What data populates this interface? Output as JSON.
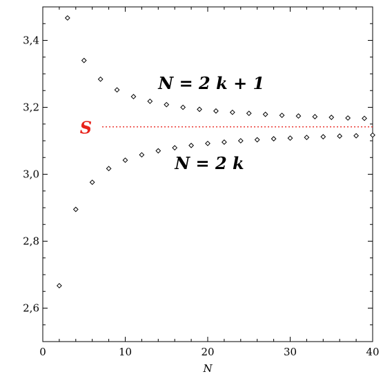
{
  "chart_data": {
    "type": "scatter",
    "title": "",
    "xlabel": "N",
    "ylabel": "",
    "xlim": [
      0,
      40
    ],
    "ylim": [
      2.5,
      3.5
    ],
    "x_ticks": [
      0,
      10,
      20,
      30,
      40
    ],
    "x_tick_labels": [
      "0",
      "10",
      "20",
      "30",
      "40"
    ],
    "y_ticks": [
      2.6,
      2.8,
      3.0,
      3.2,
      3.4
    ],
    "y_tick_labels": [
      "2,6",
      "2,8",
      "3,0",
      "3,2",
      "3,4"
    ],
    "x_minor_step": 2,
    "y_minor_step": 0.05,
    "grid": false,
    "marker": "diamond-open",
    "marker_color": "#000000",
    "series": [
      {
        "x": [
          2,
          4,
          6,
          8,
          10,
          12,
          14,
          16,
          18,
          20,
          22,
          24,
          26,
          28,
          30,
          32,
          34,
          36,
          38,
          40
        ],
        "y": [
          2.667,
          2.895,
          2.976,
          3.017,
          3.042,
          3.058,
          3.07,
          3.079,
          3.086,
          3.092,
          3.096,
          3.1,
          3.103,
          3.106,
          3.108,
          3.11,
          3.112,
          3.114,
          3.115,
          3.117
        ]
      },
      {
        "x": [
          3,
          5,
          7,
          9,
          11,
          13,
          15,
          17,
          19,
          21,
          23,
          25,
          27,
          29,
          31,
          33,
          35,
          37,
          39
        ],
        "y": [
          3.467,
          3.34,
          3.284,
          3.252,
          3.232,
          3.218,
          3.208,
          3.2,
          3.194,
          3.189,
          3.185,
          3.182,
          3.179,
          3.176,
          3.174,
          3.172,
          3.17,
          3.168,
          3.167
        ]
      }
    ],
    "reference_line": {
      "y": 3.1416,
      "x_range": [
        7.2,
        40
      ],
      "color": "#e8221b",
      "style": "dotted",
      "label": "S"
    },
    "annotations": [
      {
        "text": "N = 2 k + 1",
        "x": 14,
        "y": 3.255,
        "color": "#000000"
      },
      {
        "text": "N = 2 k",
        "x": 16,
        "y": 3.015,
        "color": "#000000"
      },
      {
        "text": "S",
        "x": 4.5,
        "y": 3.122,
        "color": "#e8221b"
      }
    ]
  }
}
